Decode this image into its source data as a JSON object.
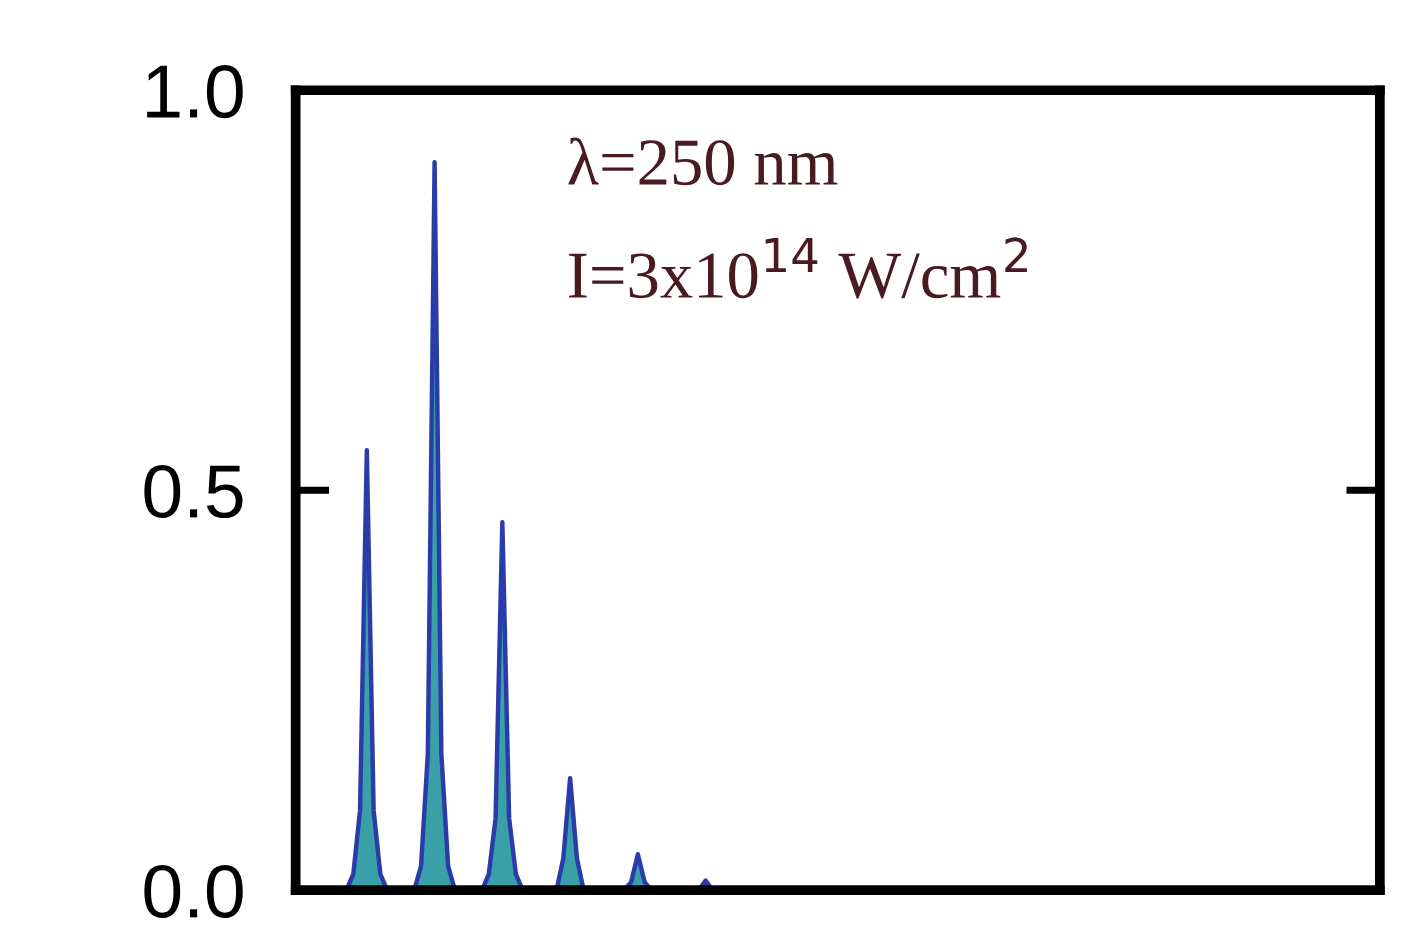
{
  "chart_data": {
    "type": "area",
    "categories": [
      null,
      null,
      null,
      null,
      null,
      null,
      null,
      null,
      null,
      null,
      null,
      null,
      null,
      null,
      null,
      null,
      null,
      null,
      null,
      null,
      null,
      null,
      null,
      null,
      null,
      null,
      null,
      null,
      null,
      null,
      null,
      null,
      null,
      null,
      null,
      null,
      null,
      null,
      null,
      null,
      null,
      null,
      null,
      null,
      null,
      null,
      null,
      null,
      null,
      null,
      null,
      null,
      null,
      null,
      null,
      null,
      null,
      null,
      null,
      null,
      null,
      null,
      null,
      null,
      null,
      null,
      null,
      null,
      null,
      null,
      null,
      null,
      null,
      null,
      null,
      null,
      null,
      null,
      null,
      null,
      null,
      null,
      null,
      null,
      null,
      null,
      null,
      null,
      null,
      null,
      null,
      null,
      null,
      null,
      null,
      null,
      null,
      null,
      null,
      null,
      null,
      null,
      null,
      null,
      null,
      null,
      null,
      null,
      null,
      null,
      null,
      null,
      null,
      null,
      null,
      null,
      null,
      null,
      null,
      null,
      null,
      null,
      null,
      null,
      null,
      null,
      null,
      null,
      null,
      null,
      null,
      null,
      null,
      null,
      null,
      null,
      null,
      null,
      null,
      null,
      null,
      null,
      null,
      null,
      null,
      null,
      null,
      null,
      null,
      null,
      null,
      null,
      null,
      null,
      null,
      null,
      null,
      null,
      null,
      null
    ],
    "series": [
      {
        "color": "#2a3caa",
        "values": [
          0,
          0,
          0,
          0,
          0,
          0,
          0,
          0,
          0.02,
          0.1,
          0.55,
          0.1,
          0.02,
          0,
          0,
          0,
          0,
          0,
          0.03,
          0.17,
          0.91,
          0.17,
          0.03,
          0,
          0,
          0,
          0,
          0,
          0.02,
          0.09,
          0.46,
          0.09,
          0.02,
          0,
          0,
          0,
          0,
          0,
          0,
          0.04,
          0.14,
          0.04,
          0,
          0,
          0,
          0,
          0,
          0,
          0,
          0.01,
          0.045,
          0.01,
          0,
          0,
          0,
          0,
          0,
          0,
          0,
          0,
          0.012,
          0,
          0,
          0,
          0,
          0,
          0,
          0,
          0,
          0,
          0,
          0,
          0,
          0,
          0,
          0,
          0,
          0,
          0,
          0,
          0,
          0,
          0,
          0,
          0,
          0,
          0,
          0,
          0,
          0,
          0,
          0,
          0,
          0,
          0,
          0,
          0,
          0,
          0,
          0,
          0,
          0,
          0,
          0,
          0,
          0,
          0,
          0,
          0,
          0,
          0,
          0,
          0,
          0,
          0,
          0,
          0,
          0,
          0,
          0,
          0,
          0,
          0,
          0,
          0,
          0,
          0,
          0,
          0,
          0,
          0,
          0,
          0,
          0,
          0,
          0,
          0,
          0,
          0,
          0,
          0,
          0,
          0,
          0,
          0,
          0,
          0,
          0,
          0,
          0,
          0,
          0,
          0,
          0,
          0,
          0,
          0,
          0,
          0,
          0
        ]
      }
    ],
    "ylim": [
      0,
      1.0
    ],
    "yticks": [
      {
        "value": 0,
        "label": "0.0"
      },
      {
        "value": 0.5,
        "label": "0.5"
      },
      {
        "value": 1,
        "label": "1.0"
      }
    ],
    "grid": false,
    "legend": false,
    "annotations": [
      "λ=250 nm",
      "I=3x10$^{14}$ W/cm$^{2}$"
    ]
  }
}
